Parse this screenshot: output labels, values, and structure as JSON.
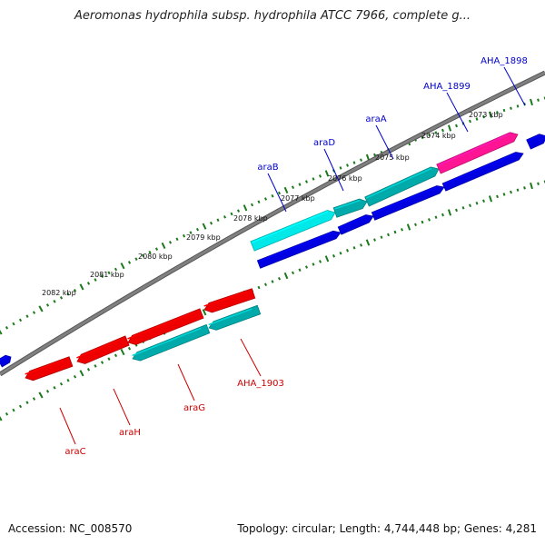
{
  "header": {
    "title": "Aeromonas hydrophila subsp. hydrophila ATCC 7966, complete g..."
  },
  "footer": {
    "accession": "Accession: NC_008570",
    "summary": "Topology: circular; Length: 4,744,448 bp; Genes: 4,281"
  },
  "colors": {
    "backbone": "#808080",
    "tick": "#1a7a1a",
    "forward_label": "#0000cc",
    "reverse_label": "#cc0000",
    "gene_blue": "#0000e0",
    "gene_red": "#ee0000",
    "gene_cyan": "#00e8e8",
    "gene_teal": "#00aaaa",
    "gene_pink": "#ff1493"
  },
  "ruler": {
    "labels": [
      "2073 kbp",
      "2074 kbp",
      "2075 kbp",
      "2076 kbp",
      "2077 kbp",
      "2078 kbp",
      "2079 kbp",
      "2080 kbp",
      "2081 kbp",
      "2082 kbp"
    ]
  },
  "gene_labels": {
    "forward": [
      "AHA_1898",
      "AHA_1899",
      "araA",
      "araD",
      "araB"
    ],
    "reverse": [
      "AHA_1903",
      "araG",
      "araH",
      "araC"
    ]
  }
}
